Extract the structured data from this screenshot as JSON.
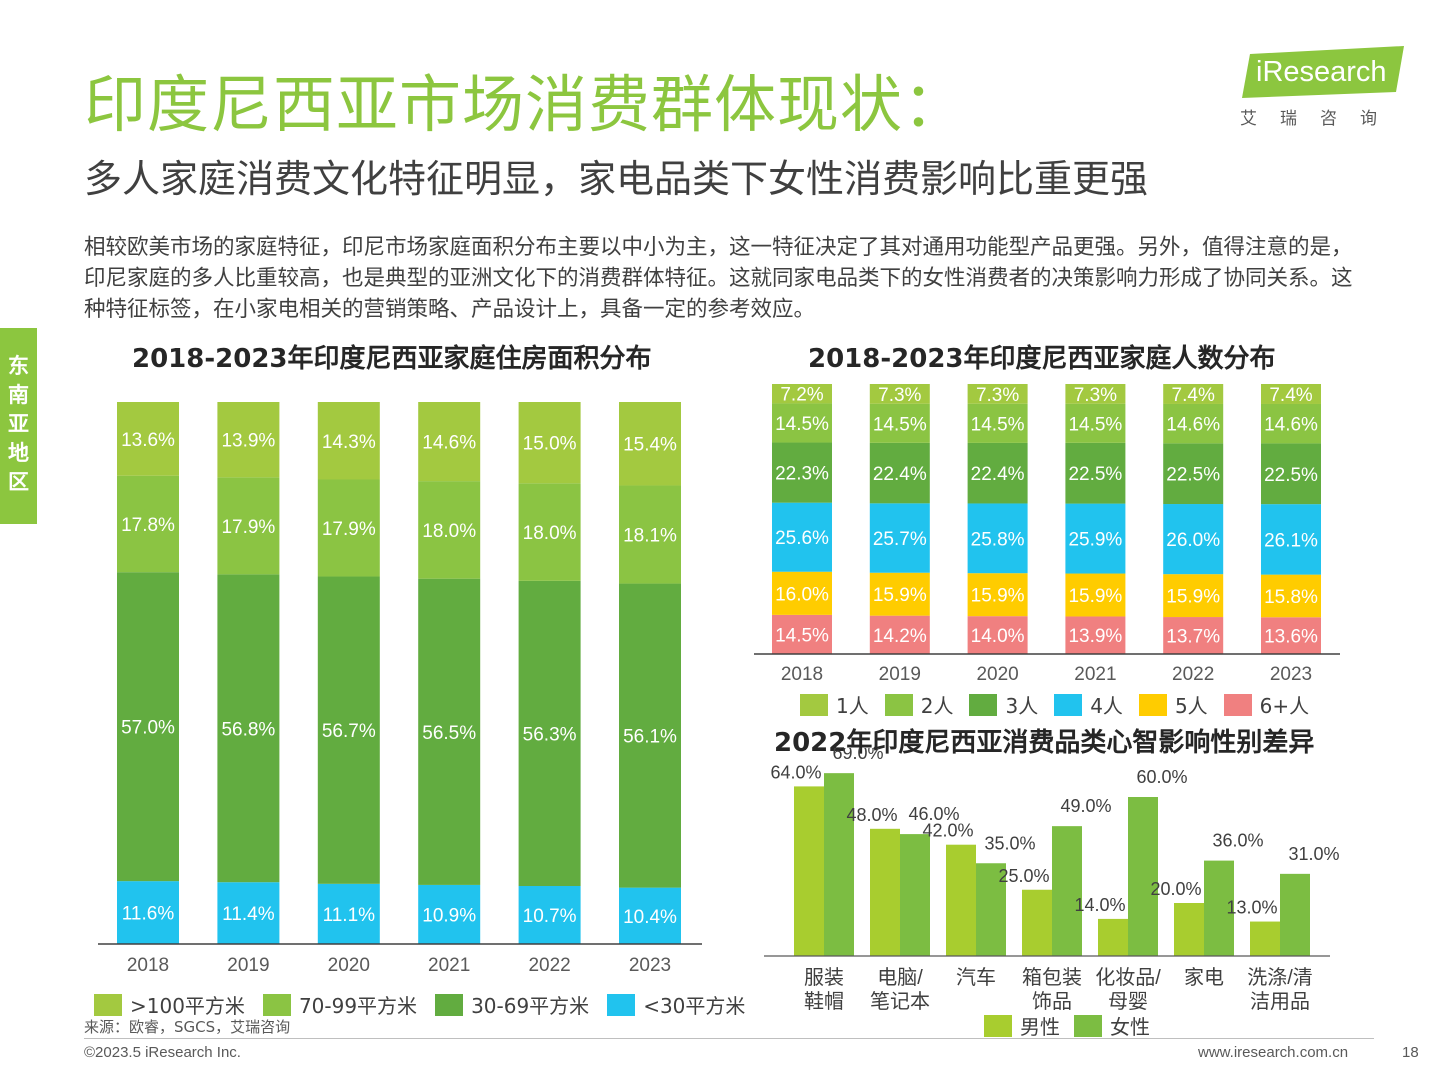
{
  "header": {
    "title": "印度尼西亚市场消费群体现状：",
    "subtitle": "多人家庭消费文化特征明显，家电品类下女性消费影响比重更强",
    "body": "相较欧美市场的家庭特征，印尼市场家庭面积分布主要以中小为主，这一特征决定了其对通用功能型产品更强。另外，值得注意的是，印尼家庭的多人比重较高，也是典型的亚洲文化下的消费群体特征。这就同家电品类下的女性消费者的决策影响力形成了协同关系。这种特征标签，在小家电相关的营销策略、产品设计上，具备一定的参考效应。"
  },
  "logo": {
    "en": "iResearch",
    "cn": "艾瑞咨询"
  },
  "side_tab": "东南亚地区",
  "footer": {
    "source": "来源：欧睿，SGCS，艾瑞咨询",
    "copyright": "©2023.5 iResearch Inc.",
    "website": "www.iresearch.com.cn",
    "page": "18"
  },
  "colors": {
    "title_green": "#8cc63f",
    "c_gt100": "#a3c940",
    "c_70_99": "#8bc443",
    "c_30_69": "#62ac40",
    "c_lt30": "#21c3ee",
    "c_1p": "#a3c940",
    "c_2p": "#8bc443",
    "c_3p": "#62ac40",
    "c_4p": "#21c3ee",
    "c_5p": "#ffcc00",
    "c_6p": "#f08080",
    "male": "#a8cd2f",
    "female": "#7cbd42"
  },
  "chart_data": [
    {
      "type": "bar",
      "stacked": true,
      "title": "2018-2023年印度尼西亚家庭住房面积分布",
      "categories": [
        "2018",
        "2019",
        "2020",
        "2021",
        "2022",
        "2023"
      ],
      "series": [
        {
          "name": "<30平方米",
          "values": [
            11.6,
            11.4,
            11.1,
            10.9,
            10.7,
            10.4
          ],
          "labels": [
            "11.6%",
            "11.4%",
            "11.1%",
            "10.9%",
            "10.7%",
            "10.4%"
          ]
        },
        {
          "name": "30-69平方米",
          "values": [
            57.0,
            56.8,
            56.7,
            56.5,
            56.3,
            56.1
          ],
          "labels": [
            "57.0%",
            "56.8%",
            "56.7%",
            "56.5%",
            "56.3%",
            "56.1%"
          ]
        },
        {
          "name": "70-99平方米",
          "values": [
            17.8,
            17.9,
            17.9,
            18.0,
            18.0,
            18.1
          ],
          "labels": [
            "17.8%",
            "17.9%",
            "17.9%",
            "18.0%",
            "18.0%",
            "18.1%"
          ]
        },
        {
          "name": ">100平方米",
          "values": [
            13.6,
            13.9,
            14.3,
            14.6,
            15.0,
            15.4
          ],
          "labels": [
            "13.6%",
            "13.9%",
            "14.3%",
            "14.6%",
            "15.0%",
            "15.4%"
          ]
        }
      ],
      "legend_order": [
        ">100平方米",
        "70-99平方米",
        "30-69平方米",
        "<30平方米"
      ],
      "legend_position": "bottom"
    },
    {
      "type": "bar",
      "stacked": true,
      "title": "2018-2023年印度尼西亚家庭人数分布",
      "categories": [
        "2018",
        "2019",
        "2020",
        "2021",
        "2022",
        "2023"
      ],
      "series": [
        {
          "name": "6+人",
          "values": [
            14.5,
            14.2,
            14.0,
            13.9,
            13.7,
            13.6
          ],
          "labels": [
            "14.5%",
            "14.2%",
            "14.0%",
            "13.9%",
            "13.7%",
            "13.6%"
          ]
        },
        {
          "name": "5人",
          "values": [
            16.0,
            15.9,
            15.9,
            15.9,
            15.9,
            15.8
          ],
          "labels": [
            "16.0%",
            "15.9%",
            "15.9%",
            "15.9%",
            "15.9%",
            "15.8%"
          ]
        },
        {
          "name": "4人",
          "values": [
            25.6,
            25.7,
            25.8,
            25.9,
            26.0,
            26.1
          ],
          "labels": [
            "25.6%",
            "25.7%",
            "25.8%",
            "25.9%",
            "26.0%",
            "26.1%"
          ]
        },
        {
          "name": "3人",
          "values": [
            22.3,
            22.4,
            22.4,
            22.5,
            22.5,
            22.5
          ],
          "labels": [
            "22.3%",
            "22.4%",
            "22.4%",
            "22.5%",
            "22.5%",
            "22.5%"
          ]
        },
        {
          "name": "2人",
          "values": [
            14.5,
            14.5,
            14.5,
            14.5,
            14.6,
            14.6
          ],
          "labels": [
            "14.5%",
            "14.5%",
            "14.5%",
            "14.5%",
            "14.6%",
            "14.6%"
          ]
        },
        {
          "name": "1人",
          "values": [
            7.2,
            7.3,
            7.3,
            7.3,
            7.4,
            7.4
          ],
          "labels": [
            "7.2%",
            "7.3%",
            "7.3%",
            "7.3%",
            "7.4%",
            "7.4%"
          ]
        }
      ],
      "legend_order": [
        "1人",
        "2人",
        "3人",
        "4人",
        "5人",
        "6+人"
      ],
      "legend_position": "bottom"
    },
    {
      "type": "bar",
      "stacked": false,
      "title": "2022年印度尼西亚消费品类心智影响性别差异",
      "categories": [
        [
          "服装",
          "鞋帽"
        ],
        [
          "电脑/",
          "笔记本"
        ],
        [
          "汽车"
        ],
        [
          "箱包装",
          "饰品"
        ],
        [
          "化妆品/",
          "母婴"
        ],
        [
          "家电"
        ],
        [
          "洗涤/清",
          "洁用品"
        ]
      ],
      "series": [
        {
          "name": "男性",
          "values": [
            64.0,
            48.0,
            42.0,
            25.0,
            14.0,
            20.0,
            13.0
          ],
          "labels": [
            "64.0%",
            "48.0%",
            "42.0%",
            "25.0%",
            "14.0%",
            "20.0%",
            "13.0%"
          ]
        },
        {
          "name": "女性",
          "values": [
            69.0,
            46.0,
            35.0,
            49.0,
            60.0,
            36.0,
            31.0
          ],
          "labels": [
            "69.0%",
            "46.0%",
            "35.0%",
            "49.0%",
            "60.0%",
            "36.0%",
            "31.0%"
          ]
        }
      ],
      "legend_position": "bottom"
    }
  ]
}
